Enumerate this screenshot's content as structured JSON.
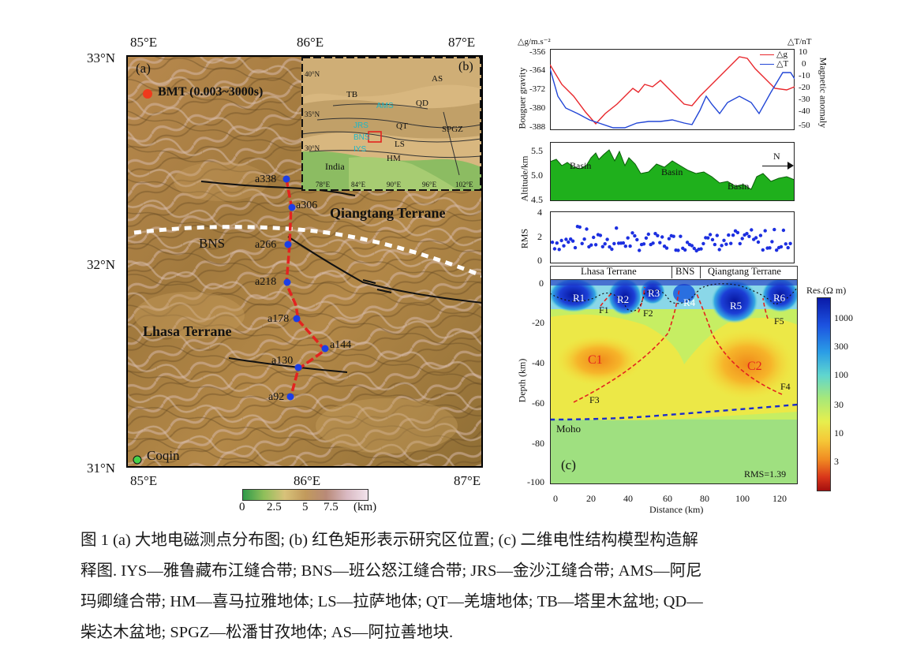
{
  "map": {
    "lon_top": [
      "85°E",
      "86°E",
      "87°E"
    ],
    "lon_bottom": [
      "85°E",
      "86°E",
      "87°E"
    ],
    "lat_left": [
      "33°N",
      "32°N",
      "31°N"
    ],
    "panel_a": "(a)",
    "bmt_label": "BMT (0.003~3000s)",
    "qiangtang": "Qiangtang Terrane",
    "lhasa": "Lhasa Terrane",
    "bns": "BNS",
    "coqin": "Coqin",
    "stations": [
      "a338",
      "a306",
      "a266",
      "a218",
      "a178",
      "a144",
      "a130",
      "a92"
    ],
    "colorbar_ticks": [
      "0",
      "2.5",
      "5",
      "7.5"
    ],
    "colorbar_unit": "(km)"
  },
  "inset": {
    "panel": "(b)",
    "labels": [
      "AS",
      "TB",
      "QD",
      "AMS",
      "QT",
      "SPGZ",
      "LS",
      "HM",
      "India",
      "JRS",
      "BNS",
      "IYS"
    ],
    "lat": [
      "40°N",
      "35°N",
      "30°N"
    ],
    "lon": [
      "78°E",
      "84°E",
      "90°E",
      "96°E",
      "102°E"
    ]
  },
  "gravity": {
    "y_label_left": "Bouguer gravity",
    "unit_left": "△g/m.s⁻²",
    "unit_right": "△T/nT",
    "y_label_right": "Magnetic anomaly",
    "left_ticks": [
      "-356",
      "-364",
      "-372",
      "-380",
      "-388"
    ],
    "right_ticks": [
      "10",
      "0",
      "-10",
      "-20",
      "-30",
      "-40",
      "-50"
    ],
    "legend": [
      "△g",
      "△T"
    ],
    "colors": {
      "dg": "#e8262b",
      "dT": "#2246d6"
    }
  },
  "altitude": {
    "y_label": "Altitude/km",
    "ticks": [
      "5.5",
      "5.0",
      "4.5"
    ],
    "basins": [
      "Basin",
      "Basin",
      "Basin"
    ],
    "north": "N"
  },
  "rms": {
    "y_label": "RMS",
    "ticks": [
      "4",
      "2",
      "0"
    ]
  },
  "section": {
    "terranes": [
      "Lhasa Terrane",
      "BNS",
      "Qiangtang Terrane"
    ],
    "resistors": [
      "R1",
      "R2",
      "R3",
      "R4",
      "R5",
      "R6"
    ],
    "conductors": [
      "C1",
      "C2"
    ],
    "faults": [
      "F1",
      "F2",
      "F3",
      "F4",
      "F5"
    ],
    "moho": "Moho",
    "panel": "(c)",
    "rms": "RMS=1.39",
    "y_label": "Depth (km)",
    "y_ticks": [
      "0",
      "-20",
      "-40",
      "-60",
      "-80",
      "-100"
    ],
    "x_ticks": [
      "0",
      "20",
      "40",
      "60",
      "80",
      "100",
      "120"
    ],
    "x_label": "Distance (km)",
    "res_label": "Res.(Ω m)",
    "res_ticks": [
      "1000",
      "300",
      "100",
      "30",
      "10",
      "3"
    ]
  },
  "caption": {
    "line1": "图 1 (a)  大地电磁测点分布图; (b)  红色矩形表示研究区位置;  (c)  二维电性结构模型构造解",
    "line2": "释图. IYS—雅鲁藏布江缝合带;  BNS—班公怒江缝合带;  JRS—金沙江缝合带;  AMS—阿尼",
    "line3": "玛卿缝合带;  HM—喜马拉雅地体;  LS—拉萨地体;  QT—羌塘地体;  TB—塔里木盆地;  QD—",
    "line4": "柴达木盆地;  SPGZ—松潘甘孜地体;  AS—阿拉善地块."
  }
}
